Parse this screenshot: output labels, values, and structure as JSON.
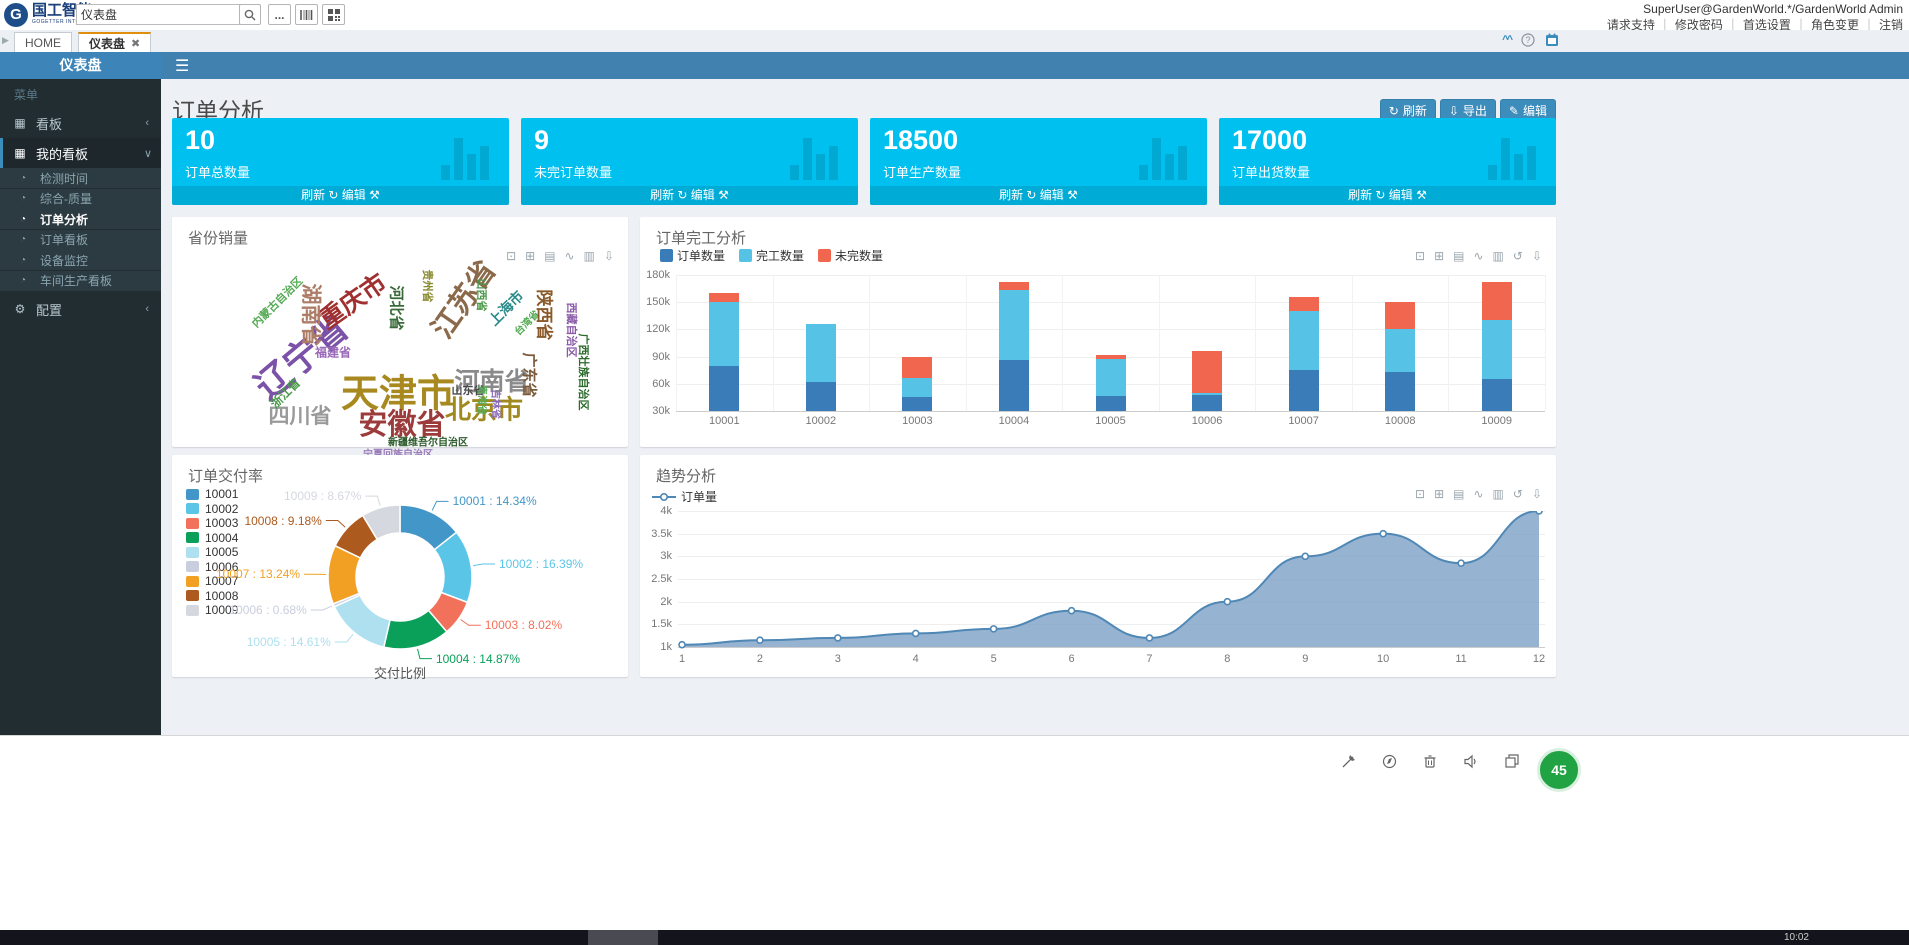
{
  "header": {
    "logo_mark": "G",
    "logo_title": "国工智能",
    "logo_subtitle": "GOGETTER INTELLIGENCE",
    "search_value": "仪表盘",
    "user": "SuperUser@GardenWorld.*/GardenWorld Admin",
    "links": [
      "请求支持",
      "修改密码",
      "首选设置",
      "角色变更",
      "注销"
    ]
  },
  "tabs": [
    {
      "label": "HOME",
      "active": false,
      "closable": false
    },
    {
      "label": "仪表盘",
      "active": true,
      "closable": true
    }
  ],
  "sidebar": {
    "title": "仪表盘",
    "menu_label": "菜单",
    "items": [
      {
        "icon": "grid-icon",
        "label": "看板",
        "chevron": "left",
        "open": false
      },
      {
        "icon": "grid-icon",
        "label": "我的看板",
        "chevron": "down",
        "open": true,
        "children": [
          {
            "label": "检测时间",
            "active": false
          },
          {
            "label": "综合-质量",
            "active": false
          },
          {
            "label": "订单分析",
            "active": true
          },
          {
            "label": "订单看板",
            "active": false
          },
          {
            "label": "设备监控",
            "active": false
          },
          {
            "label": "车间生产看板",
            "active": false
          }
        ]
      },
      {
        "icon": "gear-icon",
        "label": "配置",
        "chevron": "left",
        "open": false
      }
    ]
  },
  "page": {
    "title": "订单分析",
    "buttons": [
      {
        "icon": "refresh-icon",
        "label": "刷新"
      },
      {
        "icon": "download-icon",
        "label": "导出"
      },
      {
        "icon": "edit-icon",
        "label": "编辑"
      }
    ],
    "card_footer": {
      "refresh": "刷新",
      "edit": "编辑"
    }
  },
  "kpis": [
    {
      "value": "10",
      "label": "订单总数量"
    },
    {
      "value": "9",
      "label": "未完订单数量"
    },
    {
      "value": "18500",
      "label": "订单生产数量"
    },
    {
      "value": "17000",
      "label": "订单出货数量"
    }
  ],
  "colors": {
    "accent_blue": "#3c8dbc",
    "kpi_cyan": "#00c0ef",
    "sidebar_dark": "#222d32"
  },
  "chart_data": [
    {
      "type": "wordcloud",
      "title": "省份销量",
      "toolbox": [
        "area-zoom-icon",
        "zoom-reset-icon",
        "data-view-icon",
        "line-chart-icon",
        "bar-chart-icon",
        "download-icon"
      ],
      "words": [
        {
          "t": "辽宁省",
          "x": 128,
          "y": 138,
          "s": 36,
          "r": -40,
          "c": "#7b52a8"
        },
        {
          "t": "天津市",
          "x": 226,
          "y": 173,
          "s": 38,
          "r": 0,
          "c": "#a8891f"
        },
        {
          "t": "安徽省",
          "x": 230,
          "y": 205,
          "s": 29,
          "r": 0,
          "c": "#9c3b3b"
        },
        {
          "t": "北京市",
          "x": 312,
          "y": 191,
          "s": 26,
          "r": 0,
          "c": "#a08a20"
        },
        {
          "t": "河南省",
          "x": 320,
          "y": 163,
          "s": 25,
          "r": 0,
          "c": "#8a8a8a"
        },
        {
          "t": "江苏省",
          "x": 290,
          "y": 81,
          "s": 29,
          "r": -55,
          "c": "#8a6a4a"
        },
        {
          "t": "重庆市",
          "x": 180,
          "y": 83,
          "s": 25,
          "r": -35,
          "c": "#a03030"
        },
        {
          "t": "四川省",
          "x": 128,
          "y": 198,
          "s": 21,
          "r": 0,
          "c": "#9a9a9a"
        },
        {
          "t": "湖南省",
          "x": 140,
          "y": 98,
          "s": 21,
          "r": 90,
          "c": "#ad7d68"
        },
        {
          "t": "河北省",
          "x": 225,
          "y": 91,
          "s": 15,
          "r": 90,
          "c": "#3a6a3a"
        },
        {
          "t": "福建省",
          "x": 161,
          "y": 135,
          "s": 12,
          "r": 0,
          "c": "#9a6ab8"
        },
        {
          "t": "浙江省",
          "x": 113,
          "y": 176,
          "s": 12,
          "r": -45,
          "c": "#4a9a4a"
        },
        {
          "t": "内蒙古自治区",
          "x": 105,
          "y": 85,
          "s": 11,
          "r": -45,
          "c": "#55aa55"
        },
        {
          "t": "贵州省",
          "x": 256,
          "y": 69,
          "s": 11,
          "r": 90,
          "c": "#8a8a30"
        },
        {
          "t": "山西省",
          "x": 310,
          "y": 78,
          "s": 11,
          "r": 90,
          "c": "#4a9a4a"
        },
        {
          "t": "上海市",
          "x": 334,
          "y": 91,
          "s": 14,
          "r": -45,
          "c": "#2a8a8a"
        },
        {
          "t": "台湾省",
          "x": 354,
          "y": 105,
          "s": 10,
          "r": -45,
          "c": "#55aa55"
        },
        {
          "t": "陕西省",
          "x": 374,
          "y": 98,
          "s": 17,
          "r": 90,
          "c": "#8a5a2a"
        },
        {
          "t": "西藏自治区",
          "x": 400,
          "y": 113,
          "s": 11,
          "r": 90,
          "c": "#8a5aa8"
        },
        {
          "t": "广西壮族自治区",
          "x": 412,
          "y": 155,
          "s": 11,
          "r": 90,
          "c": "#2a6a2a"
        },
        {
          "t": "广东省",
          "x": 358,
          "y": 158,
          "s": 15,
          "r": 90,
          "c": "#7a5a3a"
        },
        {
          "t": "山东省",
          "x": 296,
          "y": 173,
          "s": 11,
          "r": 0,
          "c": "#4a4a4a"
        },
        {
          "t": "吉林省",
          "x": 325,
          "y": 187,
          "s": 10,
          "r": 90,
          "c": "#8a6ab8"
        },
        {
          "t": "青海省",
          "x": 311,
          "y": 183,
          "s": 10,
          "r": 90,
          "c": "#55aa55"
        },
        {
          "t": "新疆维吾尔自治区",
          "x": 256,
          "y": 224,
          "s": 10,
          "r": 0,
          "c": "#2a5a2a"
        },
        {
          "t": "宁夏回族自治区",
          "x": 226,
          "y": 236,
          "s": 10,
          "r": 0,
          "c": "#9a7ab8"
        }
      ]
    },
    {
      "type": "stacked-bar",
      "title": "订单完工分析",
      "toolbox": [
        "area-zoom-icon",
        "zoom-reset-icon",
        "data-view-icon",
        "line-chart-icon",
        "bar-chart-icon",
        "restore-icon",
        "download-icon"
      ],
      "categories": [
        "10001",
        "10002",
        "10003",
        "10004",
        "10005",
        "10006",
        "10007",
        "10008",
        "10009"
      ],
      "series": [
        {
          "name": "订单数量",
          "color": "#3a7cb8",
          "values": [
            80,
            62,
            45,
            86,
            46,
            48,
            75,
            73,
            65
          ]
        },
        {
          "name": "完工数量",
          "color": "#56c2e6",
          "values": [
            70,
            64,
            21,
            78,
            41,
            2,
            65,
            47,
            65
          ]
        },
        {
          "name": "未完数量",
          "color": "#f0664e",
          "values": [
            10,
            0,
            24,
            8,
            5,
            46,
            16,
            30,
            42
          ]
        }
      ],
      "unit": "k",
      "y_min": 30,
      "y_max": 180,
      "y_ticks": [
        "180k",
        "150k",
        "120k",
        "90k",
        "60k",
        "30k"
      ]
    },
    {
      "type": "donut",
      "title": "订单交付率",
      "center_label": "交付比例",
      "legend": [
        "10001",
        "10002",
        "10003",
        "10004",
        "10005",
        "10006",
        "10007",
        "10008",
        "10009"
      ],
      "items": [
        {
          "name": "10001",
          "value": 14.34,
          "color": "#4396c8"
        },
        {
          "name": "10002",
          "value": 16.39,
          "color": "#5bc5e8"
        },
        {
          "name": "10003",
          "value": 8.02,
          "color": "#f2715a"
        },
        {
          "name": "10004",
          "value": 14.87,
          "color": "#0ba05a"
        },
        {
          "name": "10005",
          "value": 14.61,
          "color": "#aee0ef"
        },
        {
          "name": "10006",
          "value": 0.68,
          "color": "#c9cede"
        },
        {
          "name": "10007",
          "value": 13.24,
          "color": "#f2a024"
        },
        {
          "name": "10008",
          "value": 9.18,
          "color": "#ad5a1e"
        },
        {
          "name": "10009",
          "value": 8.67,
          "color": "#d5d8de"
        }
      ]
    },
    {
      "type": "area",
      "title": "趋势分析",
      "toolbox": [
        "area-zoom-icon",
        "zoom-reset-icon",
        "data-view-icon",
        "line-chart-icon",
        "bar-chart-icon",
        "restore-icon",
        "download-icon"
      ],
      "series_name": "订单量",
      "x": [
        "1",
        "2",
        "3",
        "4",
        "5",
        "6",
        "7",
        "8",
        "9",
        "10",
        "11",
        "12"
      ],
      "values": [
        1050,
        1150,
        1200,
        1300,
        1400,
        1800,
        1200,
        2000,
        3000,
        3500,
        2850,
        4000
      ],
      "y_ticks": [
        "4k",
        "3.5k",
        "3k",
        "2.5k",
        "2k",
        "1.5k",
        "1k"
      ],
      "y_min": 1000,
      "y_max": 4000,
      "line_color": "#4f87b5",
      "fill_color": "rgba(124,160,197,0.8)"
    }
  ],
  "statusbar": {
    "icons": [
      "pin-icon",
      "compass-icon",
      "trash-icon",
      "speaker-icon",
      "window-icon"
    ],
    "badge": "45",
    "time": "10:02"
  }
}
